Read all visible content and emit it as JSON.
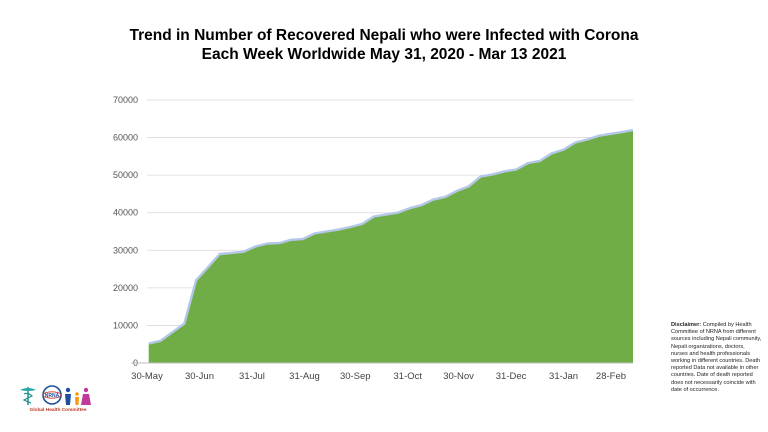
{
  "chart_data": {
    "type": "area",
    "title_line1": "Trend in Number of Recovered Nepali who were Infected with Corona",
    "title_line2": "Each Week Worldwide May 31, 2020 - Mar 13 2021",
    "xlabel": "",
    "ylabel": "",
    "ylim": [
      0,
      70000
    ],
    "y_ticks": [
      0,
      10000,
      20000,
      30000,
      40000,
      50000,
      60000,
      70000
    ],
    "x_tick_labels": [
      "30-May",
      "30-Jun",
      "31-Jul",
      "31-Aug",
      "30-Sep",
      "31-Oct",
      "30-Nov",
      "31-Dec",
      "31-Jan",
      "28-Feb"
    ],
    "grid": "horizontal",
    "legend": "none",
    "series": [
      {
        "x": [
          "2020-05-31",
          "2020-06-07",
          "2020-06-14",
          "2020-06-21",
          "2020-06-28",
          "2020-07-05",
          "2020-07-12",
          "2020-07-19",
          "2020-07-26",
          "2020-08-02",
          "2020-08-09",
          "2020-08-16",
          "2020-08-23",
          "2020-08-30",
          "2020-09-06",
          "2020-09-13",
          "2020-09-20",
          "2020-09-27",
          "2020-10-04",
          "2020-10-11",
          "2020-10-18",
          "2020-10-25",
          "2020-11-01",
          "2020-11-08",
          "2020-11-15",
          "2020-11-22",
          "2020-11-29",
          "2020-12-06",
          "2020-12-13",
          "2020-12-20",
          "2020-12-27",
          "2021-01-03",
          "2021-01-10",
          "2021-01-17",
          "2021-01-24",
          "2021-01-31",
          "2021-02-07",
          "2021-02-14",
          "2021-02-21",
          "2021-02-28",
          "2021-03-07",
          "2021-03-13"
        ],
        "values": [
          5200,
          5900,
          8200,
          10500,
          22000,
          25500,
          29000,
          29300,
          29600,
          31000,
          31800,
          31900,
          32800,
          33000,
          34500,
          35000,
          35500,
          36200,
          37000,
          39000,
          39500,
          40000,
          41200,
          42000,
          43500,
          44200,
          45800,
          47000,
          49600,
          50200,
          51000,
          51500,
          53200,
          53800,
          55800,
          56800,
          58700,
          59500,
          60500,
          61000,
          61500,
          62000
        ]
      }
    ],
    "colors": {
      "fill": "#70ad47",
      "edge": "#b4c7e7",
      "grid": "#d9d9d9",
      "baseline": "#bfbfbf"
    }
  },
  "disclaimer": {
    "heading": "Disclaimer:",
    "body": "Compiled by Health Committee of NRNA from different sources including Nepali community, Nepali organizations, doctors, nurses and health professionals working in different countries. Death reported Data not available in other countries. Date of death reported does not necessarily coincide with date of occurrence."
  },
  "logo": {
    "name": "NRNA Global Health Committee logo",
    "caption": "Global Health Committee",
    "badge_text": "NRNA"
  }
}
